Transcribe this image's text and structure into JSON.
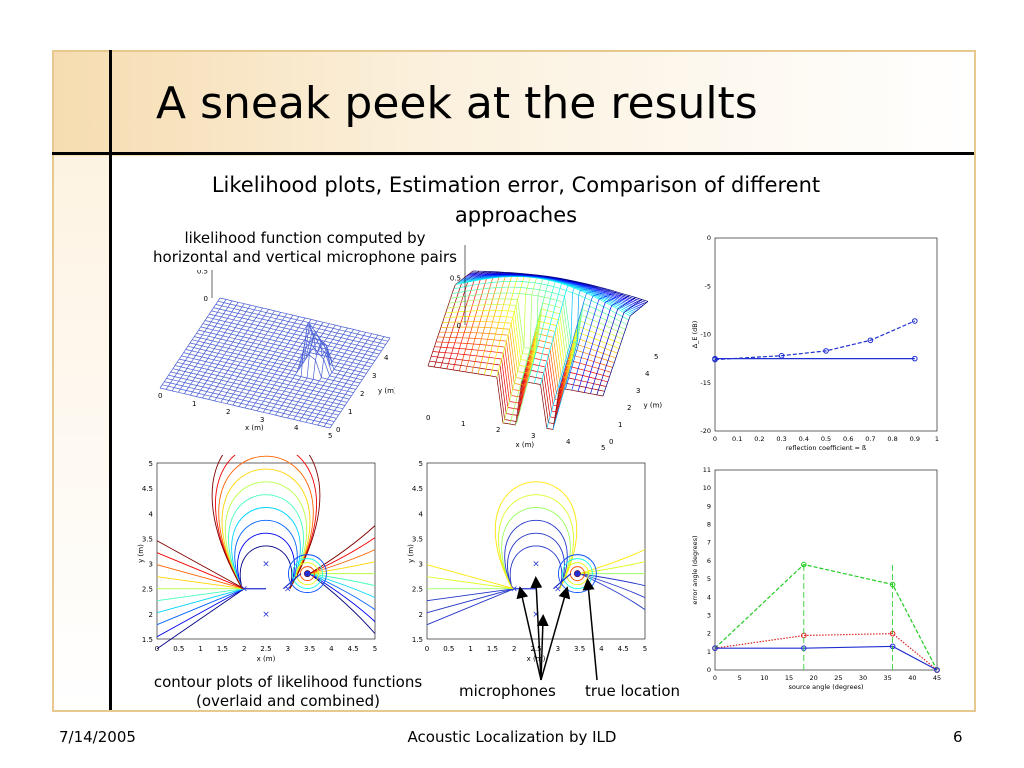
{
  "slide": {
    "title": "A sneak peek at the results",
    "subtitle": "Likelihood plots, Estimation error, Comparison of different approaches",
    "caption_surface": "likelihood function computed by\nhorizontal and vertical microphone pairs",
    "caption_contour": "contour plots of likelihood functions\n(overlaid and combined)",
    "label_microphones": "microphones",
    "label_true_location": "true location",
    "footer_date": "7/14/2005",
    "footer_title": "Acoustic Localization by ILD",
    "footer_page": "6"
  },
  "surface_plot_axes": {
    "x_label": "x (m)",
    "y_label": "y (m)",
    "x_ticks": [
      "0",
      "1",
      "2",
      "3",
      "4",
      "5"
    ],
    "y_ticks": [
      "0",
      "1",
      "2",
      "3",
      "4",
      "5"
    ],
    "z_ticks": [
      "0",
      "0.5",
      "1"
    ]
  },
  "contour_plot_axes": {
    "x_label": "x (m)",
    "y_label": "y (m)",
    "x_ticks": [
      "0",
      "0.5",
      "1",
      "1.5",
      "2",
      "2.5",
      "3",
      "3.5",
      "4",
      "4.5",
      "5"
    ],
    "y_ticks": [
      "1.5",
      "2",
      "2.5",
      "3",
      "3.5",
      "4",
      "4.5",
      "5"
    ]
  },
  "chart_data": [
    {
      "type": "line",
      "xlabel": "reflection coefficient = ß",
      "ylabel": "Δ_E (dB)",
      "xlim": [
        0,
        1
      ],
      "ylim": [
        -20,
        0
      ],
      "x_ticks": [
        "0",
        "0.1",
        "0.2",
        "0.3",
        "0.4",
        "0.5",
        "0.6",
        "0.7",
        "0.8",
        "0.9",
        "1"
      ],
      "y_ticks": [
        "0",
        "-5",
        "-10",
        "-15",
        "-20"
      ],
      "series": [
        {
          "x": [
            0,
            0.3,
            0.5,
            0.7,
            0.9
          ],
          "y": [
            -12.6,
            -12.2,
            -11.7,
            -10.6,
            -8.6
          ],
          "style": "dashed",
          "color": "#1f2fd0"
        },
        {
          "x": [
            0,
            0.9
          ],
          "y": [
            -12.5,
            -12.5
          ],
          "style": "solid",
          "color": "#1f2fd0"
        }
      ]
    },
    {
      "type": "line",
      "xlabel": "source angle (degrees)",
      "ylabel": "error angle (degrees)",
      "xlim": [
        0,
        45
      ],
      "ylim": [
        0,
        11
      ],
      "x_ticks": [
        "0",
        "5",
        "10",
        "15",
        "20",
        "25",
        "30",
        "35",
        "40",
        "45"
      ],
      "y_ticks": [
        "0",
        "1",
        "2",
        "3",
        "4",
        "5",
        "6",
        "7",
        "8",
        "9",
        "10",
        "11"
      ],
      "series": [
        {
          "x": [
            0,
            18,
            36,
            45
          ],
          "y": [
            1.2,
            5.8,
            4.7,
            0
          ],
          "style": "dashed",
          "color": "#22cc22"
        },
        {
          "x": [
            0,
            18,
            36,
            45
          ],
          "y": [
            1.2,
            1.9,
            2.0,
            0
          ],
          "style": "dotted",
          "color": "#dd2222"
        },
        {
          "x": [
            0,
            18,
            36,
            45
          ],
          "y": [
            1.2,
            1.2,
            1.3,
            0
          ],
          "style": "solid",
          "color": "#1f2fd0"
        }
      ]
    }
  ]
}
